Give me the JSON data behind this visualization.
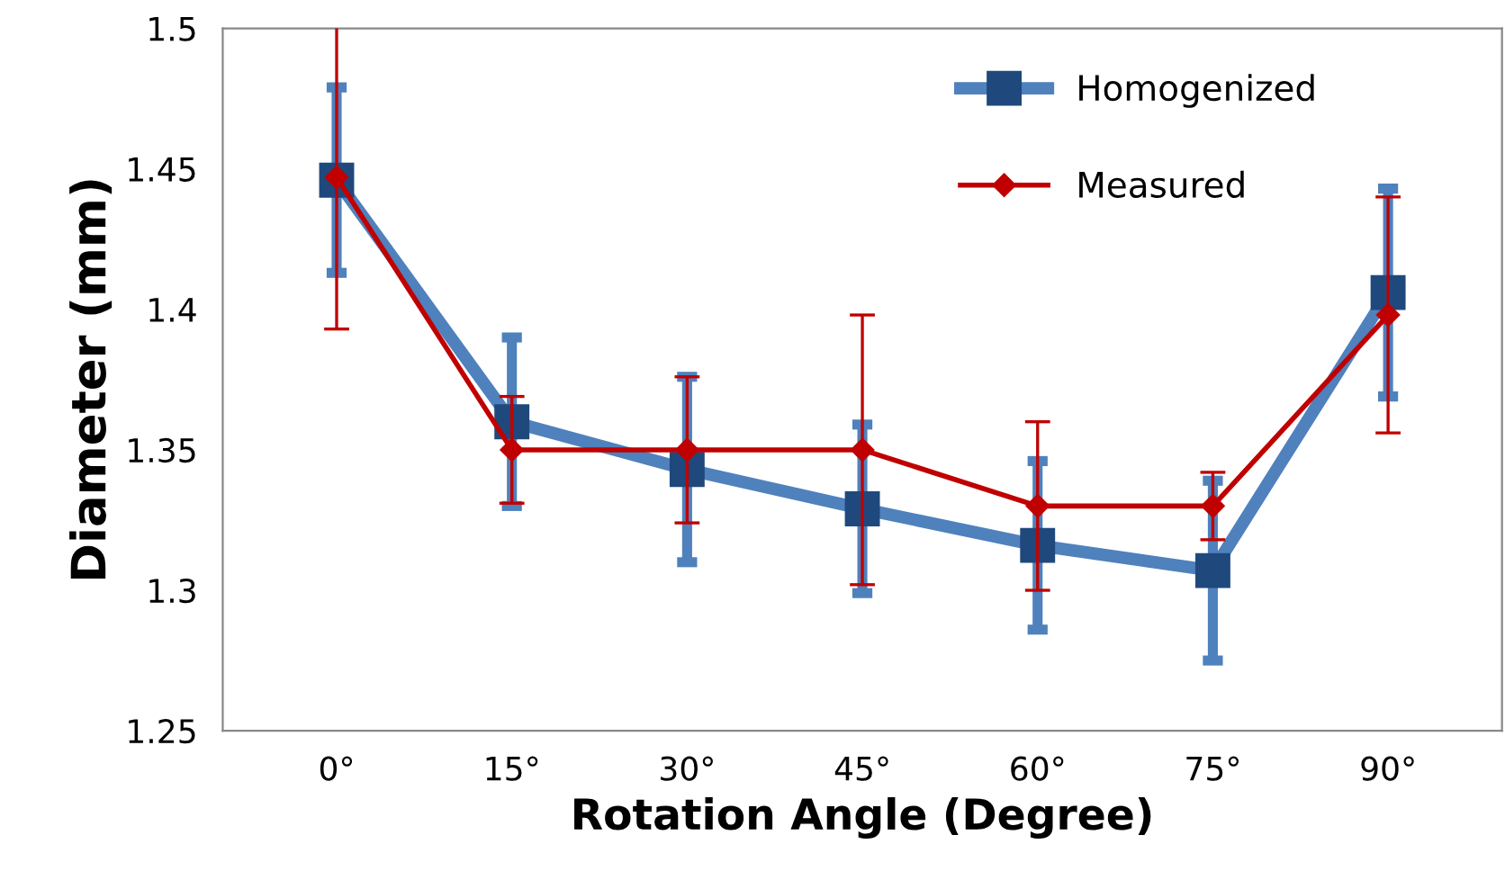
{
  "chart_data": {
    "type": "line",
    "xlabel": "Rotation Angle (Degree)",
    "ylabel": "Diameter (mm)",
    "categories": [
      "0°",
      "15°",
      "30°",
      "45°",
      "60°",
      "75°",
      "90°"
    ],
    "series": [
      {
        "name": "Homogenized",
        "color": "#4f81bd",
        "marker": "square",
        "values": [
          1.446,
          1.36,
          1.343,
          1.329,
          1.316,
          1.307,
          1.406
        ],
        "errors": [
          0.033,
          0.03,
          0.033,
          0.03,
          0.03,
          0.032,
          0.037
        ]
      },
      {
        "name": "Measured",
        "color": "#c00000",
        "marker": "diamond",
        "values": [
          1.447,
          1.35,
          1.35,
          1.35,
          1.33,
          1.33,
          1.398
        ],
        "errors": [
          0.054,
          0.019,
          0.026,
          0.048,
          0.03,
          0.012,
          0.042
        ]
      }
    ],
    "ylim": [
      1.25,
      1.5
    ],
    "yticks": [
      1.25,
      1.3,
      1.35,
      1.4,
      1.45,
      1.5
    ],
    "grid": false,
    "legend": "top right",
    "line_style": "solid"
  }
}
